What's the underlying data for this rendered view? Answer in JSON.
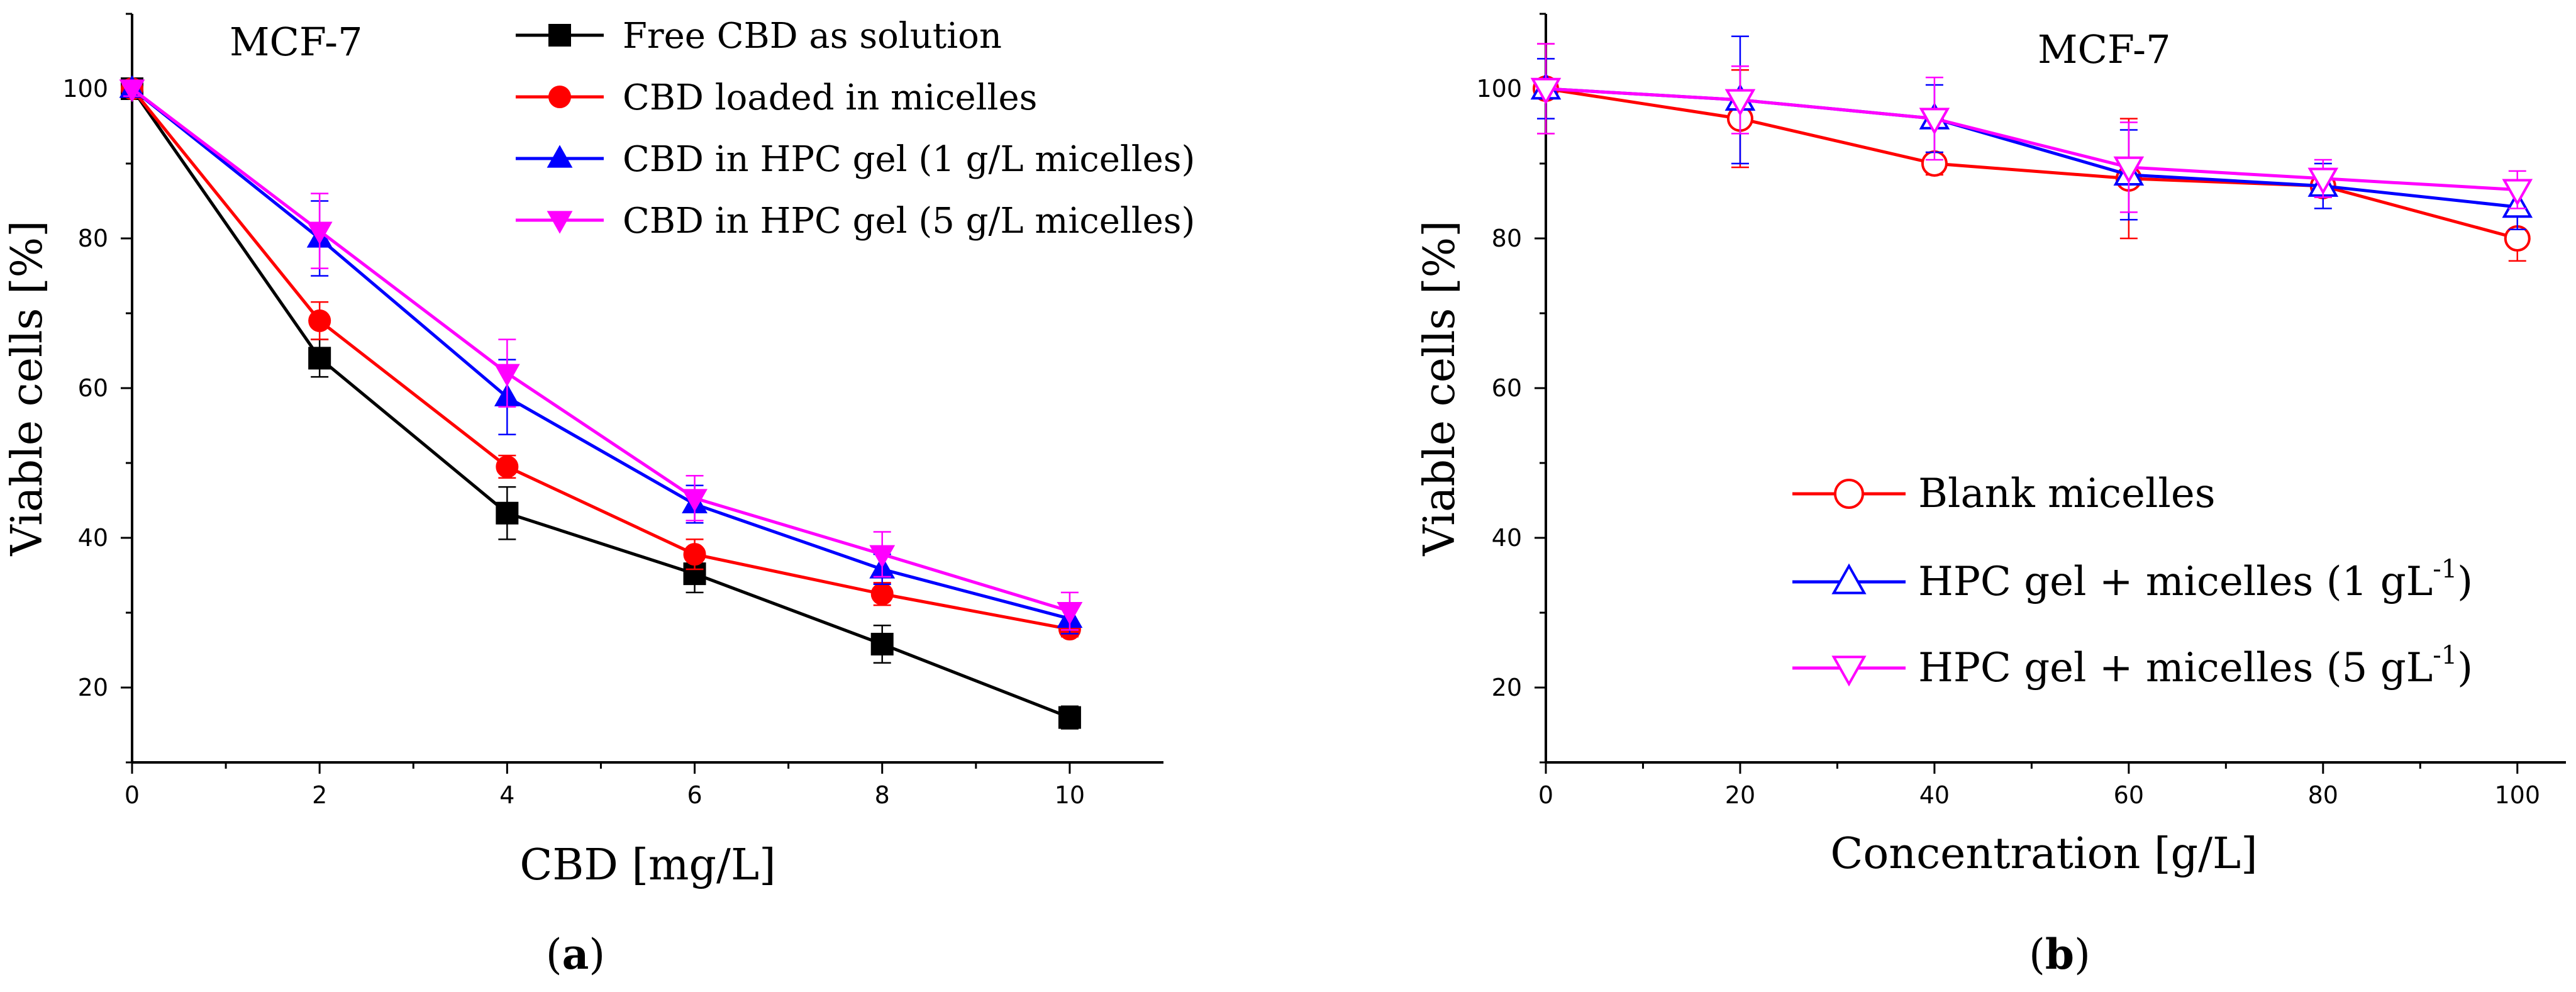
{
  "chart_data": [
    {
      "type": "line",
      "panel_label": "a",
      "title": "MCF-7",
      "xlabel": "CBD [mg/L]",
      "ylabel": "Viable cells [%]",
      "xlim": [
        0,
        11
      ],
      "ylim": [
        10,
        110
      ],
      "x_ticks": [
        "0",
        "2",
        "4",
        "6",
        "8",
        "10"
      ],
      "y_ticks": [
        "20",
        "40",
        "60",
        "80",
        "100"
      ],
      "legend_position": "top-right",
      "series": [
        {
          "name": "Free CBD as solution",
          "color": "#000000",
          "marker": "square",
          "filled": true,
          "x": [
            0,
            2,
            4,
            6,
            8,
            10
          ],
          "y": [
            100,
            64,
            43.3,
            35.2,
            25.8,
            16
          ],
          "err": [
            1,
            2.5,
            3.5,
            2.5,
            2.5,
            1.5
          ]
        },
        {
          "name": "CBD loaded in micelles",
          "color": "#ff0000",
          "marker": "circle",
          "filled": true,
          "x": [
            0,
            2,
            4,
            6,
            8,
            10
          ],
          "y": [
            100,
            69,
            49.5,
            37.8,
            32.5,
            27.8
          ],
          "err": [
            1,
            2.5,
            1.5,
            2,
            1.5,
            1
          ]
        },
        {
          "name": "CBD in HPC gel (1 g/L micelles)",
          "color": "#0000ff",
          "marker": "triangle-up",
          "filled": true,
          "x": [
            0,
            2,
            4,
            6,
            8,
            10
          ],
          "y": [
            100,
            80,
            58.8,
            44.5,
            35.8,
            29.2
          ],
          "err": [
            1,
            5,
            5,
            2.5,
            2,
            2
          ]
        },
        {
          "name": "CBD in HPC gel (5 g/L micelles)",
          "color": "#ff00ff",
          "marker": "triangle-down",
          "filled": true,
          "x": [
            0,
            2,
            4,
            6,
            8,
            10
          ],
          "y": [
            100,
            81,
            62,
            45.3,
            37.8,
            30.2
          ],
          "err": [
            1,
            5,
            4.5,
            3,
            3,
            2.5
          ]
        }
      ]
    },
    {
      "type": "line",
      "panel_label": "b",
      "title": "MCF-7",
      "xlabel": "Concentration [g/L]",
      "ylabel": "Viable cells [%]",
      "xlim": [
        0,
        105
      ],
      "ylim": [
        10,
        110
      ],
      "x_ticks": [
        "0",
        "20",
        "40",
        "60",
        "80",
        "100"
      ],
      "y_ticks": [
        "20",
        "40",
        "60",
        "80",
        "100"
      ],
      "legend_position": "bottom-right",
      "series": [
        {
          "name": "Blank micelles",
          "label_main": "Blank micelles",
          "label_sup": "",
          "label_end": "",
          "color": "#ff0000",
          "marker": "circle",
          "filled": false,
          "x": [
            0,
            20,
            40,
            60,
            80,
            100
          ],
          "y": [
            100,
            96,
            90,
            88,
            87,
            80
          ],
          "err": [
            6,
            6.5,
            1.5,
            8,
            1.5,
            3
          ]
        },
        {
          "name": "HPC gel + micelles (1 gL-1)",
          "label_main": "HPC gel + micelles (1 gL",
          "label_sup": "-1",
          "label_end": ")",
          "color": "#0000ff",
          "marker": "triangle-up",
          "filled": false,
          "x": [
            0,
            20,
            40,
            60,
            80,
            100
          ],
          "y": [
            100,
            98.5,
            96,
            88.5,
            87,
            84.2
          ],
          "err": [
            4,
            8.5,
            4.5,
            6,
            3,
            3
          ]
        },
        {
          "name": "HPC gel + micelles (5 gL-1)",
          "label_main": "HPC gel + micelles (5 gL",
          "label_sup": "-1",
          "label_end": ")",
          "color": "#ff00ff",
          "marker": "triangle-down",
          "filled": false,
          "x": [
            0,
            20,
            40,
            60,
            80,
            100
          ],
          "y": [
            100,
            98.5,
            96,
            89.5,
            88,
            86.5
          ],
          "err": [
            6,
            4.5,
            5.5,
            6,
            2.5,
            2.5
          ]
        }
      ]
    }
  ]
}
